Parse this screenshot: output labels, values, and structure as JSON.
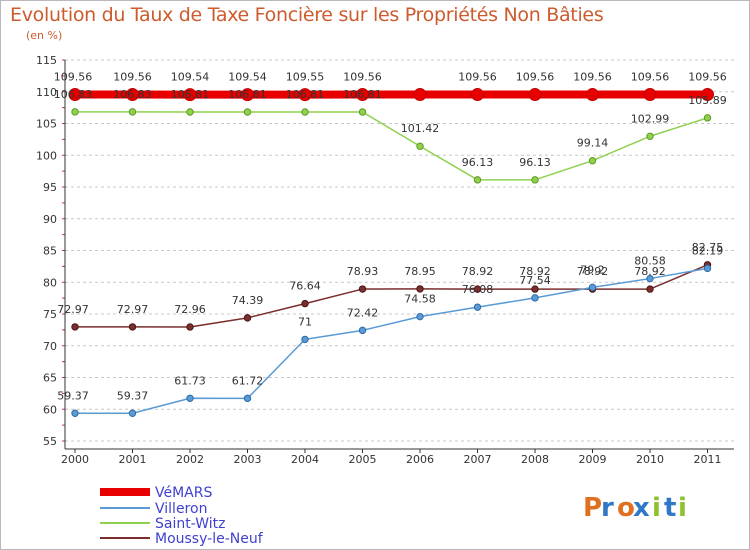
{
  "chart_data": {
    "type": "line",
    "title": "Evolution du Taux de Taxe Foncière sur les Propriétés Non Bâties",
    "ylabel": "(en %)",
    "xlabel": "",
    "ylim": [
      55,
      115
    ],
    "yticks": [
      55,
      60,
      65,
      70,
      75,
      80,
      85,
      90,
      95,
      100,
      105,
      110,
      115
    ],
    "categories": [
      "2000",
      "2001",
      "2002",
      "2003",
      "2004",
      "2005",
      "2006",
      "2007",
      "2008",
      "2009",
      "2010",
      "2011"
    ],
    "series": [
      {
        "name": "VéMARS",
        "color": "#e80000",
        "values": [
          109.56,
          109.56,
          109.54,
          109.54,
          109.55,
          109.56,
          109.56,
          109.56,
          109.56,
          109.56,
          109.56,
          109.56
        ],
        "labels": [
          "109.56",
          "109.56",
          "109.54",
          "109.54",
          "109.55",
          "109.56",
          "",
          "109.56",
          "109.56",
          "109.56",
          "109.56",
          "109.56"
        ]
      },
      {
        "name": "Villeron",
        "color": "#5a9bd5",
        "values": [
          59.37,
          59.37,
          61.73,
          61.72,
          71,
          72.42,
          74.58,
          76.08,
          77.54,
          79.2,
          80.58,
          82.19
        ],
        "labels": [
          "59.37",
          "59.37",
          "61.73",
          "61.72",
          "71",
          "72.42",
          "74.58",
          "76.08",
          "77.54",
          "79.2",
          "80.58",
          "82.19"
        ]
      },
      {
        "name": "Saint-Witz",
        "color": "#8fd14f",
        "values": [
          106.83,
          106.83,
          106.81,
          106.81,
          106.81,
          106.81,
          101.42,
          96.13,
          96.13,
          99.14,
          102.99,
          105.89
        ],
        "labels": [
          "106.83",
          "106.83",
          "106.81",
          "106.81",
          "106.81",
          "106.81",
          "101.42",
          "96.13",
          "96.13",
          "99.14",
          "102.99",
          "105.89"
        ]
      },
      {
        "name": "Moussy-le-Neuf",
        "color": "#7a2e2e",
        "values": [
          72.97,
          72.97,
          72.96,
          74.39,
          76.64,
          78.93,
          78.95,
          78.92,
          78.92,
          78.92,
          78.92,
          82.75
        ],
        "labels": [
          "72.97",
          "72.97",
          "72.96",
          "74.39",
          "76.64",
          "78.93",
          "78.95",
          "78.92",
          "78.92",
          "78.92",
          "78.92",
          "82.75"
        ]
      }
    ],
    "legend": [
      "VéMARS",
      "Villeron",
      "Saint-Witz",
      "Moussy-le-Neuf"
    ],
    "legend_position": "bottom-left"
  },
  "logo": {
    "text": "Proxiti",
    "letter_colors": [
      "#e07020",
      "#2f78c8",
      "#e07020",
      "#2f78c8",
      "#8fc030",
      "#2f78c8",
      "#8fc030"
    ]
  }
}
